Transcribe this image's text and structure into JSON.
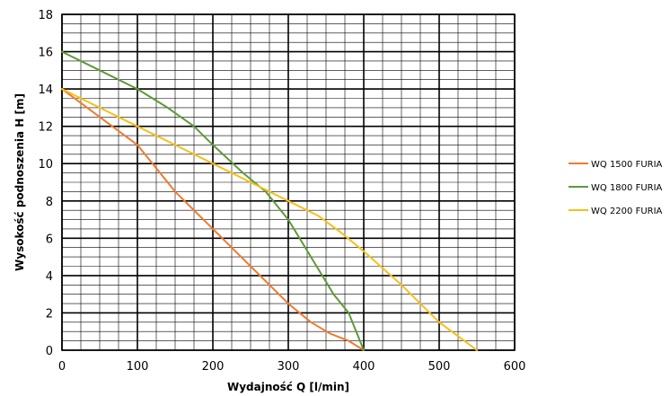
{
  "chart_data": {
    "type": "line",
    "title": "",
    "xlabel": "Wydajność Q [l/min]",
    "ylabel": "Wysokość podnoszenia H [m]",
    "xlim": [
      0,
      600
    ],
    "ylim": [
      0,
      18
    ],
    "x_ticks": [
      0,
      100,
      200,
      300,
      400,
      500,
      600
    ],
    "y_ticks": [
      0,
      2,
      4,
      6,
      8,
      10,
      12,
      14,
      16,
      18
    ],
    "x_minor_step": 25,
    "y_minor_step": 0.5,
    "grid": true,
    "legend_position": "right",
    "series": [
      {
        "name": "WQ 1500 FURIA",
        "color": "#f07a2e",
        "points": [
          [
            0,
            14
          ],
          [
            50,
            12.5
          ],
          [
            100,
            11
          ],
          [
            150,
            8.5
          ],
          [
            200,
            6.5
          ],
          [
            250,
            4.5
          ],
          [
            300,
            2.5
          ],
          [
            330,
            1.5
          ],
          [
            355,
            0.9
          ],
          [
            380,
            0.5
          ],
          [
            400,
            0
          ]
        ]
      },
      {
        "name": "WQ 1800 FURIA",
        "color": "#5e9a3a",
        "points": [
          [
            0,
            16
          ],
          [
            50,
            15
          ],
          [
            100,
            14
          ],
          [
            140,
            13
          ],
          [
            175,
            12
          ],
          [
            200,
            11
          ],
          [
            240,
            9.5
          ],
          [
            270,
            8.5
          ],
          [
            300,
            7
          ],
          [
            330,
            5
          ],
          [
            360,
            3
          ],
          [
            380,
            2
          ],
          [
            400,
            0
          ]
        ]
      },
      {
        "name": "WQ 2200 FURIA",
        "color": "#f6c018",
        "points": [
          [
            0,
            14
          ],
          [
            50,
            13
          ],
          [
            100,
            12
          ],
          [
            150,
            11
          ],
          [
            200,
            10
          ],
          [
            250,
            9
          ],
          [
            300,
            8
          ],
          [
            340,
            7.2
          ],
          [
            370,
            6.3
          ],
          [
            400,
            5.3
          ],
          [
            450,
            3.5
          ],
          [
            500,
            1.5
          ],
          [
            550,
            0
          ]
        ]
      }
    ]
  }
}
